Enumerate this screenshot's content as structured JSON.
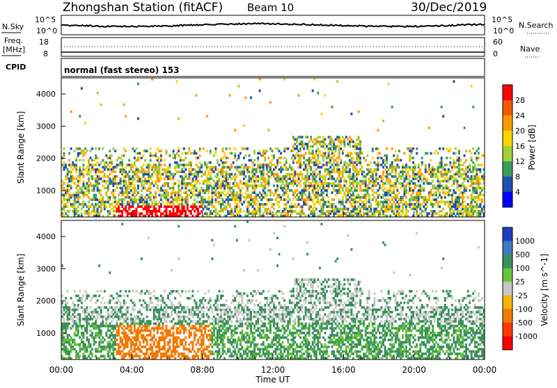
{
  "header": {
    "title": "Zhongshan Station (fitACF)",
    "beam": "Beam 10",
    "date": "30/Dec/2019"
  },
  "top_panels": {
    "nsky": {
      "label": "N.Sky",
      "left_ticks": [
        "10^5",
        "10^0"
      ],
      "right_label": "N.Search",
      "right_ticks": [
        "10^5",
        "10^0"
      ]
    },
    "freq": {
      "label_line1": "Freq.",
      "label_line2": "[MHz]",
      "left_ticks": [
        "18",
        "8"
      ],
      "right_label": "Nave",
      "right_ticks": [
        "60",
        "0"
      ]
    },
    "cpid_label": "CPID",
    "cpid_value": "normal (fast stereo) 153"
  },
  "chart_data": [
    {
      "type": "heatmap",
      "quantity": "Power",
      "ylabel": "Slant Range [km]",
      "ylim": [
        180,
        4500
      ],
      "yticks": [
        1000,
        2000,
        3000,
        4000
      ],
      "xlim_hours": [
        0,
        24
      ],
      "colorbar": {
        "label": "Power [dB]",
        "ticks": [
          "28",
          "24",
          "20",
          "16",
          "12",
          "8",
          "4"
        ],
        "colors": [
          "#ff0000",
          "#f05a00",
          "#ff9a00",
          "#ffd400",
          "#9ed03a",
          "#3d9d5a",
          "#1f4fb0",
          "#0000ff"
        ]
      }
    },
    {
      "type": "heatmap",
      "quantity": "Velocity",
      "ylabel": "Slant Range [km]",
      "ylim": [
        180,
        4500
      ],
      "yticks": [
        1000,
        2000,
        3000,
        4000
      ],
      "xlim_hours": [
        0,
        24
      ],
      "colorbar": {
        "label": "Velocity [m s^-1]",
        "ticks": [
          "1000",
          "500",
          "100",
          "25",
          "-25",
          "-100",
          "-500",
          "-1000"
        ],
        "colors": [
          "#1f3fbf",
          "#3d7bbf",
          "#3d8f5e",
          "#66c43a",
          "#c8c8c8",
          "#f2b400",
          "#f07a00",
          "#ff3a00",
          "#ff0000"
        ]
      }
    }
  ],
  "x_axis": {
    "tick_labels": [
      "00:00",
      "04:00",
      "08:00",
      "12:00",
      "16:00",
      "20:00",
      "00:00"
    ],
    "label": "Time UT"
  }
}
